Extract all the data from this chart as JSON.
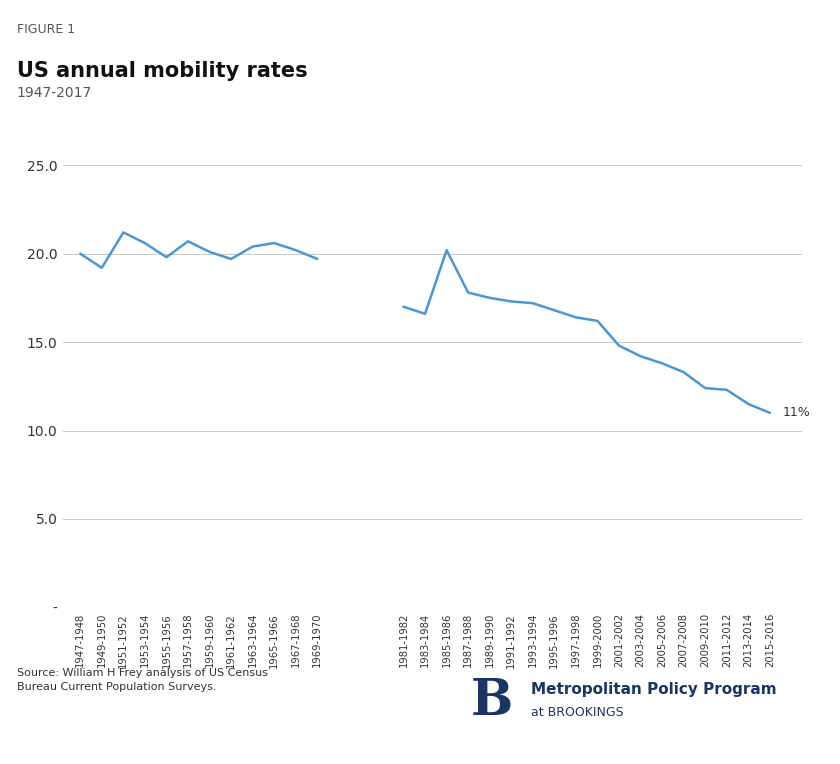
{
  "title": "US annual mobility rates",
  "subtitle": "1947-2017",
  "figure_label": "FIGURE 1",
  "line_color": "#4d96d4",
  "grid_color": "#c8c8c8",
  "text_color": "#333333",
  "source_text": "Source: William H Frey analysis of US Census\nBureau Current Population Surveys.",
  "annotation": "11%",
  "segment1_labels": [
    "1947-1948",
    "1949-1950",
    "1951-1952",
    "1953-1954",
    "1955-1956",
    "1957-1958",
    "1959-1960",
    "1961-1962",
    "1963-1964",
    "1965-1966",
    "1967-1968",
    "1969-1970"
  ],
  "segment1_values": [
    20.0,
    19.2,
    21.2,
    20.6,
    19.8,
    20.7,
    20.1,
    19.7,
    20.4,
    20.6,
    20.2,
    19.7
  ],
  "segment2_labels": [
    "1981-1982",
    "1983-1984",
    "1985-1986",
    "1987-1988",
    "1989-1990",
    "1991-1992",
    "1993-1994",
    "1995-1996",
    "1997-1998",
    "1999-2000",
    "2001-2002",
    "2003-2004",
    "2005-2006",
    "2007-2008",
    "2009-2010",
    "2011-2012",
    "2013-2014",
    "2015-2016"
  ],
  "segment2_values": [
    17.0,
    16.6,
    20.2,
    17.8,
    17.5,
    17.3,
    17.2,
    16.8,
    16.4,
    16.2,
    14.8,
    14.2,
    13.8,
    13.3,
    12.4,
    12.3,
    11.5,
    11.0
  ],
  "ylim": [
    0,
    27
  ],
  "yticks": [
    0,
    5.0,
    10.0,
    15.0,
    20.0,
    25.0
  ],
  "ytick_labels": [
    "-",
    "5.0",
    "10.0",
    "15.0",
    "20.0",
    "25.0"
  ],
  "brookings_color": "#1a3464",
  "separator_color": "#999999",
  "figure_label_color": "#555555",
  "title_color": "#111111",
  "subtitle_color": "#555555"
}
